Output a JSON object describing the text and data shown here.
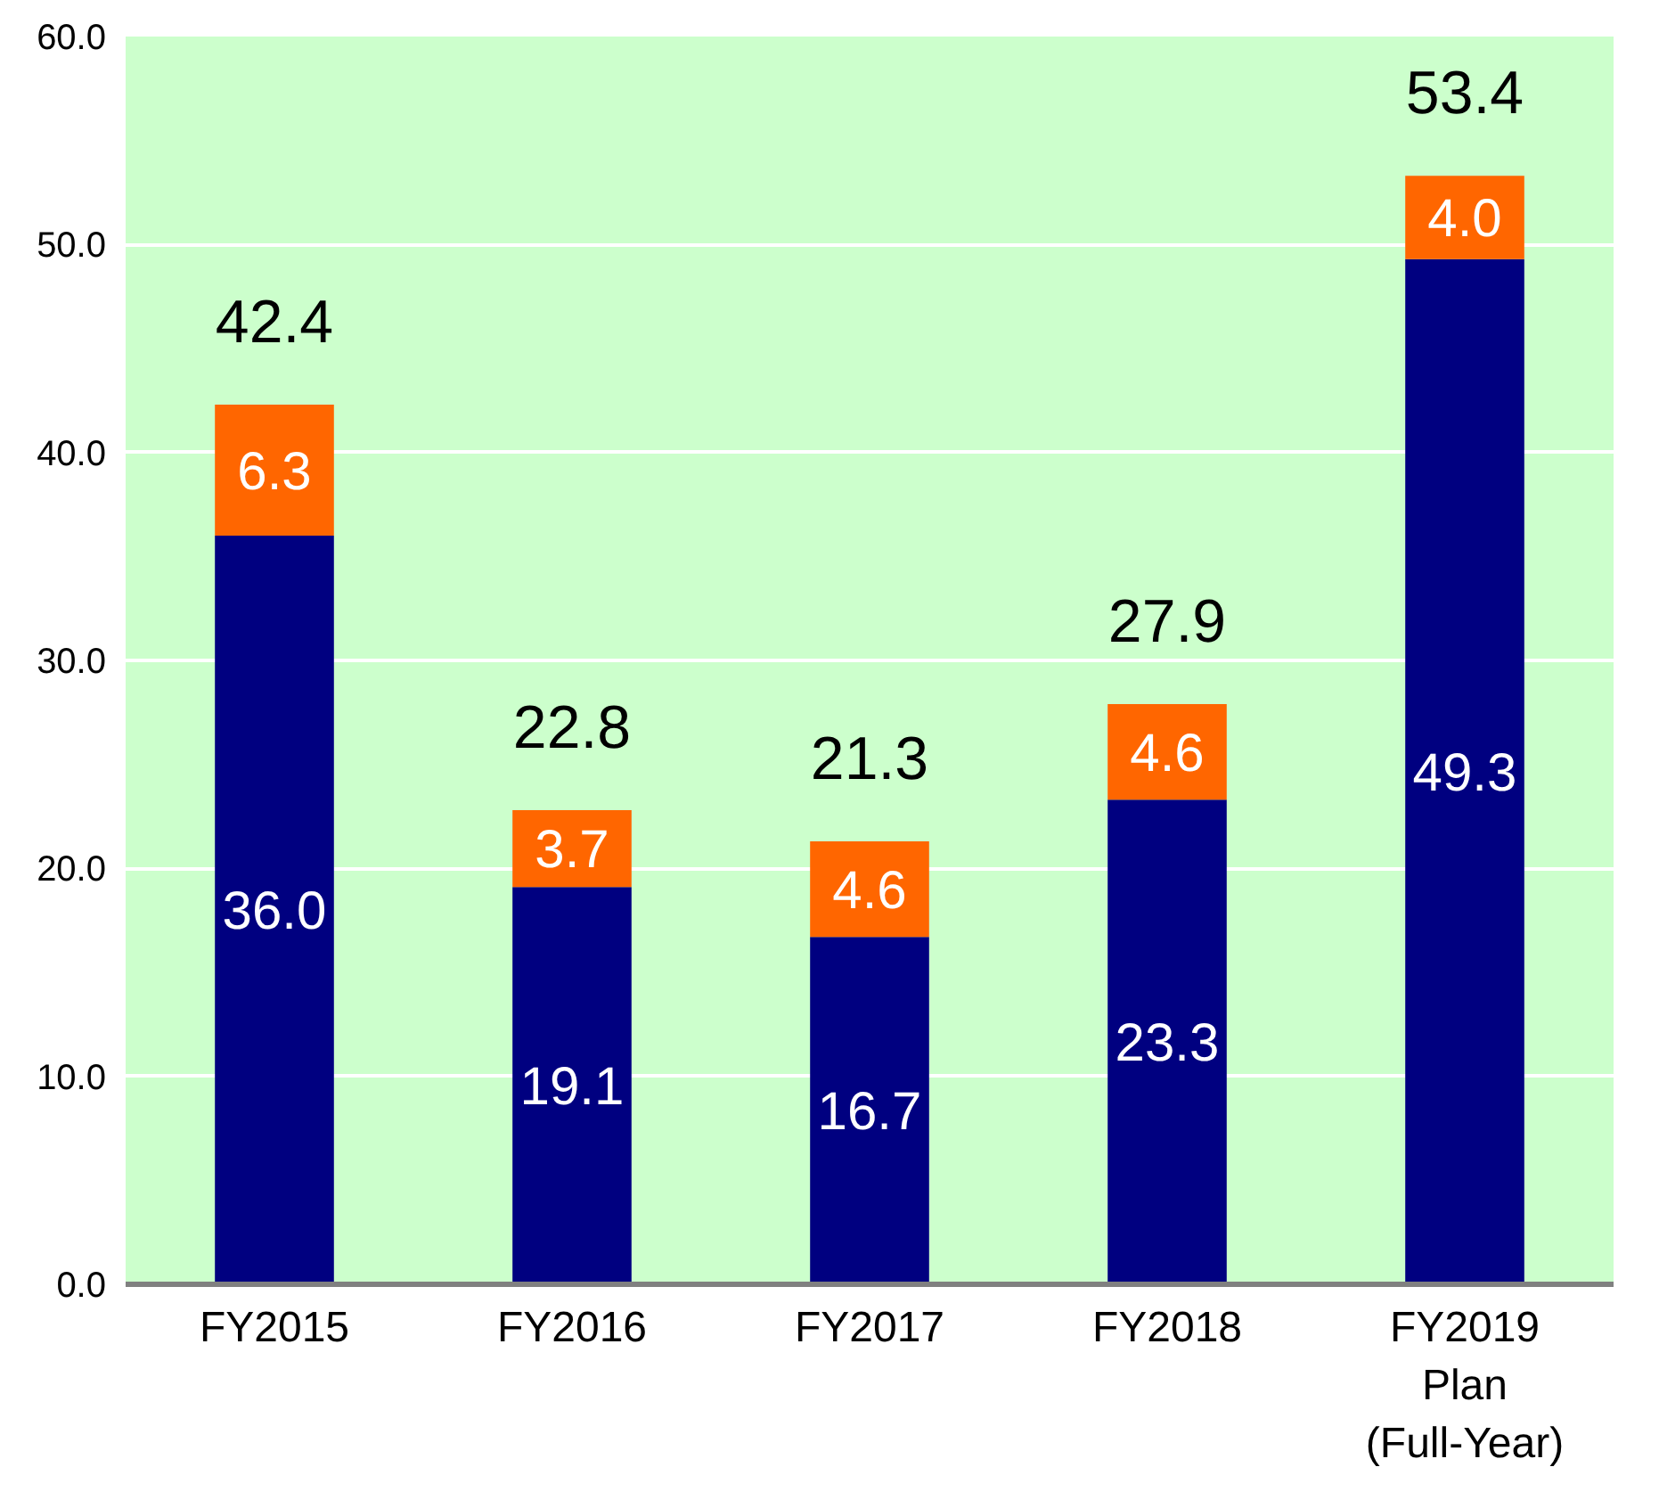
{
  "chart_data": {
    "type": "bar",
    "stacked": true,
    "categories": [
      "FY2015",
      "FY2016",
      "FY2017",
      "FY2018",
      "FY2019\nPlan\n(Full-Year)"
    ],
    "series": [
      {
        "color": "#000080",
        "values": [
          36.0,
          19.1,
          16.7,
          23.3,
          49.3
        ],
        "value_labels": [
          "36.0",
          "19.1",
          "16.7",
          "23.3",
          "49.3"
        ]
      },
      {
        "color": "#ff6600",
        "values": [
          6.3,
          3.7,
          4.6,
          4.6,
          4.0
        ],
        "value_labels": [
          "6.3",
          "3.7",
          "4.6",
          "4.6",
          "4.0"
        ]
      }
    ],
    "ylim": [
      0,
      60
    ],
    "yticks": [
      {
        "value": 0,
        "label": "0.0"
      },
      {
        "value": 10,
        "label": "10.0"
      },
      {
        "value": 20,
        "label": "20.0"
      },
      {
        "value": 30,
        "label": "30.0"
      },
      {
        "value": 40,
        "label": "40.0"
      },
      {
        "value": 50,
        "label": "50.0"
      },
      {
        "value": 60,
        "label": "60.0"
      }
    ],
    "grid": "y",
    "totals": [
      "42.4",
      "22.8",
      "21.3",
      "27.9",
      "53.4"
    ]
  }
}
